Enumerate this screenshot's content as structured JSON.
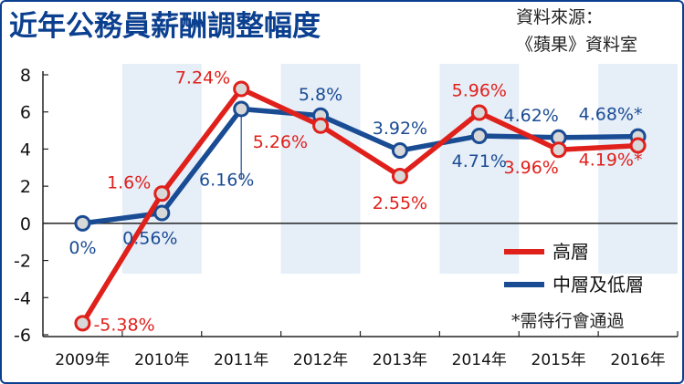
{
  "header": {
    "title": "近年公務員薪酬調整幅度",
    "source_line1": "資料來源：",
    "source_line2": "《蘋果》資料室"
  },
  "chart_data": {
    "type": "line",
    "title": "近年公務員薪酬調整幅度",
    "categories": [
      "2009年",
      "2010年",
      "2011年",
      "2012年",
      "2013年",
      "2014年",
      "2015年",
      "2016年"
    ],
    "ylim": [
      -6,
      8
    ],
    "y_ticks": [
      "8",
      "6",
      "4",
      "2",
      "0",
      "-2",
      "-4",
      "-6"
    ],
    "grid": false,
    "legend_position": "bottom-right",
    "series": [
      {
        "name": "高層",
        "color": "#e0201b",
        "values": [
          -5.38,
          1.6,
          7.24,
          5.26,
          2.55,
          5.96,
          3.96,
          4.19
        ],
        "labels": [
          "-5.38%",
          "1.6%",
          "7.24%",
          "5.26%",
          "2.55%",
          "5.96%",
          "3.96%",
          "4.19%*"
        ]
      },
      {
        "name": "中層及低層",
        "color": "#1a4c94",
        "values": [
          0,
          0.56,
          6.16,
          5.8,
          3.92,
          4.71,
          4.62,
          4.68
        ],
        "labels": [
          "0%",
          "0.56%",
          "6.16%",
          "5.8%",
          "3.92%",
          "4.71%",
          "4.62%",
          "4.68%*"
        ]
      }
    ],
    "note": "*需待行會通過"
  }
}
